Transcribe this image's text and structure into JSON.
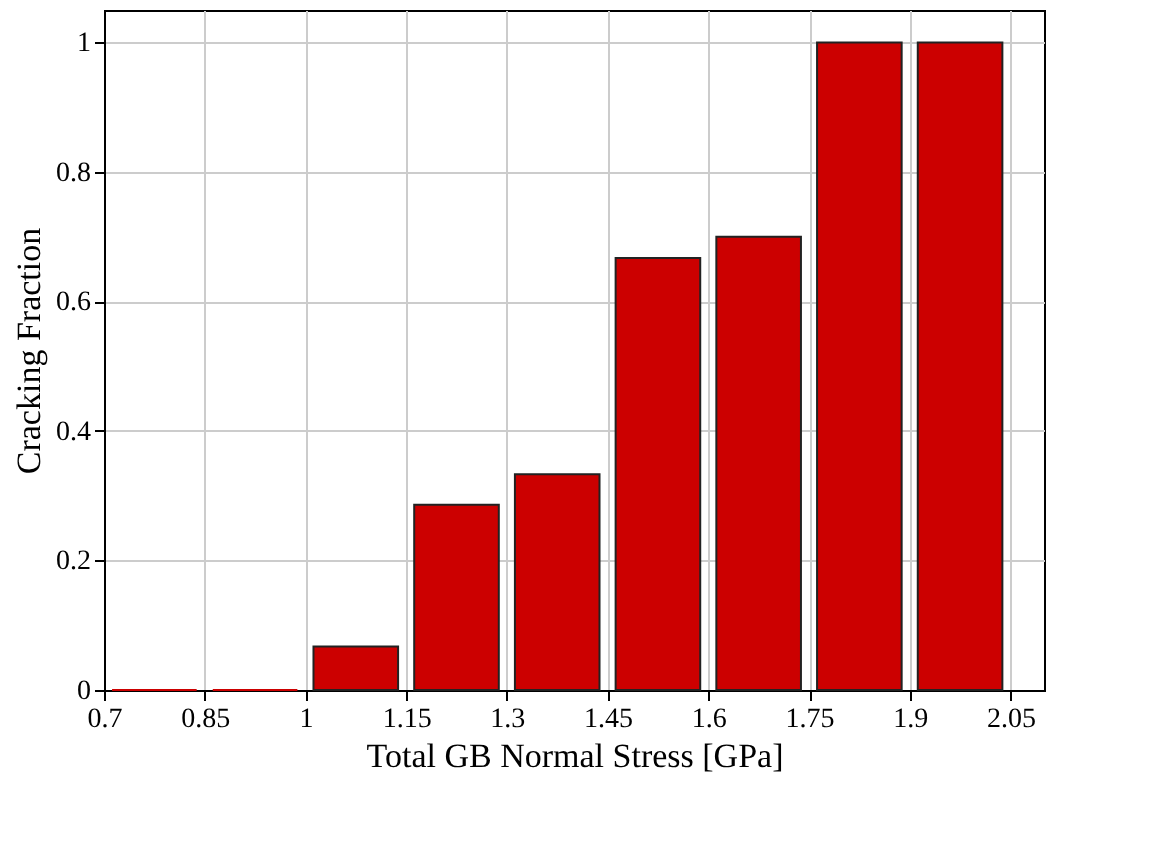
{
  "chart_data": {
    "type": "histogram",
    "xlabel": "Total GB Normal Stress [GPa]",
    "ylabel": "Cracking Fraction",
    "bins": [
      0.7,
      0.85,
      1,
      1.15,
      1.3,
      1.45,
      1.6,
      1.75,
      1.9,
      2.05
    ],
    "values": [
      0,
      0,
      0.067,
      0.286,
      0.333,
      0.667,
      0.7,
      1,
      1
    ],
    "color": "#cc0000",
    "xlim": [
      0.7,
      2.1
    ],
    "xticks": [
      0.7,
      0.85,
      1,
      1.15,
      1.3,
      1.45,
      1.6,
      1.75,
      1.9,
      2.05
    ],
    "ylim": [
      0,
      1.05
    ],
    "yticks": [
      0,
      0.2,
      0.4,
      0.6,
      0.8,
      1
    ],
    "grid": true
  }
}
